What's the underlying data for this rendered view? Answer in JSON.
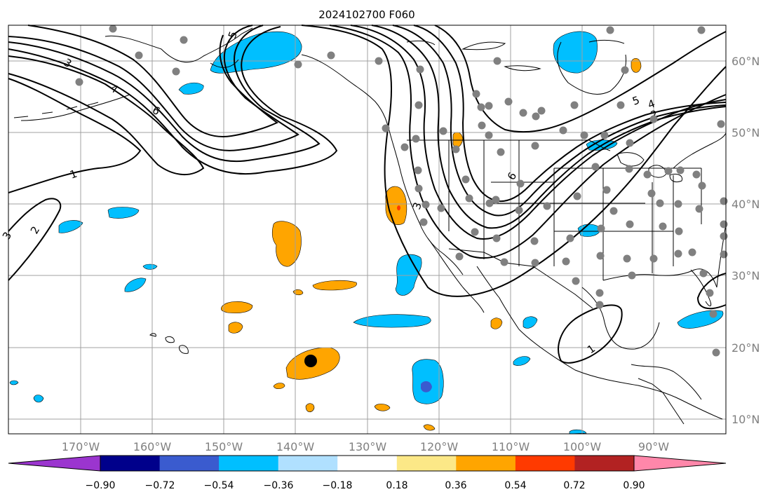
{
  "title": "2024102700 F060",
  "map": {
    "lat_labels": [
      "60°N",
      "50°N",
      "40°N",
      "30°N",
      "20°N",
      "10°N"
    ],
    "lon_labels": [
      "170°W",
      "160°W",
      "150°W",
      "140°W",
      "130°W",
      "120°W",
      "110°W",
      "100°W",
      "90°W"
    ],
    "contour_labels": [
      "1",
      "2",
      "3",
      "4",
      "5",
      "6"
    ],
    "marker_color": "#808080"
  },
  "colorbar": {
    "tick_labels": [
      "−0.90",
      "−0.72",
      "−0.54",
      "−0.36",
      "−0.18",
      "0.18",
      "0.36",
      "0.54",
      "0.72",
      "0.90"
    ],
    "colors": [
      "#9b35cf",
      "#00008b",
      "#3a5bcf",
      "#00bfff",
      "#b0e0ff",
      "#ffffff",
      "#fce887",
      "#ffa500",
      "#ff3a00",
      "#b22222",
      "#ff87aa"
    ]
  }
}
